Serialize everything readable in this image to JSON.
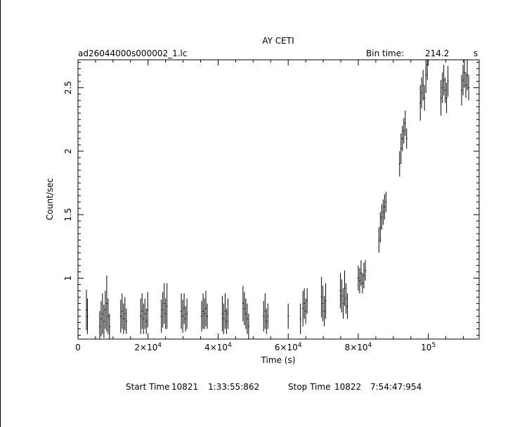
{
  "chart_data": {
    "type": "scatter",
    "title": "AY CETI",
    "file_label": "ad26044000s000002_1.lc",
    "bin_time_label": "Bin time:",
    "bin_time_value": "214.2",
    "bin_time_unit": "s",
    "xlabel": "Time (s)",
    "ylabel": "Count/sec",
    "xlim": [
      0,
      114500
    ],
    "ylim": [
      0.52,
      2.72
    ],
    "x_ticks": [
      {
        "value": 0,
        "label": "0",
        "exp": ""
      },
      {
        "value": 20000,
        "label": "2×10",
        "exp": "4"
      },
      {
        "value": 40000,
        "label": "4×10",
        "exp": "4"
      },
      {
        "value": 60000,
        "label": "6×10",
        "exp": "4"
      },
      {
        "value": 80000,
        "label": "8×10",
        "exp": "4"
      },
      {
        "value": 100000,
        "label": "10",
        "exp": "5"
      }
    ],
    "y_ticks": [
      {
        "value": 1,
        "label": "1"
      },
      {
        "value": 1.5,
        "label": "1.5"
      },
      {
        "value": 2,
        "label": "2"
      },
      {
        "value": 2.5,
        "label": "2.5"
      }
    ],
    "grid": false,
    "series": [
      {
        "points": [
          [
            2400,
            0.75,
            0.16
          ],
          [
            2700,
            0.7,
            0.14
          ],
          [
            6200,
            0.62,
            0.12
          ],
          [
            6600,
            0.68,
            0.14
          ],
          [
            7000,
            0.72,
            0.16
          ],
          [
            7400,
            0.66,
            0.13
          ],
          [
            7800,
            0.75,
            0.15
          ],
          [
            8200,
            0.8,
            0.22
          ],
          [
            8600,
            0.7,
            0.14
          ],
          [
            9000,
            0.62,
            0.1
          ],
          [
            12200,
            0.7,
            0.13
          ],
          [
            12600,
            0.74,
            0.14
          ],
          [
            13000,
            0.68,
            0.12
          ],
          [
            13400,
            0.72,
            0.13
          ],
          [
            13800,
            0.66,
            0.1
          ],
          [
            17900,
            0.7,
            0.14
          ],
          [
            18300,
            0.74,
            0.14
          ],
          [
            18700,
            0.68,
            0.12
          ],
          [
            19100,
            0.72,
            0.12
          ],
          [
            19500,
            0.66,
            0.1
          ],
          [
            19900,
            0.75,
            0.14
          ],
          [
            23800,
            0.7,
            0.13
          ],
          [
            24200,
            0.75,
            0.14
          ],
          [
            24600,
            0.8,
            0.16
          ],
          [
            25000,
            0.72,
            0.12
          ],
          [
            25400,
            0.78,
            0.18
          ],
          [
            29500,
            0.74,
            0.14
          ],
          [
            29900,
            0.7,
            0.13
          ],
          [
            30300,
            0.76,
            0.12
          ],
          [
            30700,
            0.68,
            0.1
          ],
          [
            31100,
            0.72,
            0.12
          ],
          [
            35300,
            0.7,
            0.12
          ],
          [
            35700,
            0.74,
            0.14
          ],
          [
            36100,
            0.72,
            0.12
          ],
          [
            36500,
            0.76,
            0.14
          ],
          [
            36900,
            0.7,
            0.1
          ],
          [
            41200,
            0.72,
            0.14
          ],
          [
            41600,
            0.68,
            0.12
          ],
          [
            42000,
            0.74,
            0.14
          ],
          [
            42400,
            0.66,
            0.1
          ],
          [
            42800,
            0.72,
            0.12
          ],
          [
            47100,
            0.8,
            0.14
          ],
          [
            47500,
            0.76,
            0.13
          ],
          [
            47900,
            0.72,
            0.12
          ],
          [
            48300,
            0.68,
            0.12
          ],
          [
            48700,
            0.62,
            0.1
          ],
          [
            53000,
            0.7,
            0.12
          ],
          [
            53400,
            0.74,
            0.14
          ],
          [
            53800,
            0.66,
            0.1
          ],
          [
            54200,
            0.7,
            0.1
          ],
          [
            60000,
            0.7,
            0.1
          ],
          [
            63500,
            0.68,
            0.12
          ],
          [
            64200,
            0.76,
            0.14
          ],
          [
            64600,
            0.8,
            0.12
          ],
          [
            65000,
            0.74,
            0.1
          ],
          [
            65400,
            0.82,
            0.1
          ],
          [
            69500,
            0.85,
            0.16
          ],
          [
            69900,
            0.8,
            0.14
          ],
          [
            70300,
            0.74,
            0.12
          ],
          [
            70700,
            0.82,
            0.14
          ],
          [
            74900,
            0.9,
            0.14
          ],
          [
            75300,
            0.86,
            0.13
          ],
          [
            75700,
            0.8,
            0.12
          ],
          [
            76100,
            0.92,
            0.14
          ],
          [
            76500,
            0.84,
            0.12
          ],
          [
            76900,
            0.78,
            0.1
          ],
          [
            80000,
            1.0,
            0.1
          ],
          [
            80400,
            0.98,
            0.1
          ],
          [
            80800,
            1.04,
            0.1
          ],
          [
            81200,
            0.96,
            0.08
          ],
          [
            81600,
            1.02,
            0.1
          ],
          [
            82000,
            1.06,
            0.08
          ],
          [
            85900,
            1.3,
            0.1
          ],
          [
            86300,
            1.4,
            0.12
          ],
          [
            86700,
            1.48,
            0.1
          ],
          [
            87100,
            1.52,
            0.1
          ],
          [
            87500,
            1.56,
            0.1
          ],
          [
            87900,
            1.6,
            0.08
          ],
          [
            91800,
            1.9,
            0.1
          ],
          [
            92200,
            2.02,
            0.12
          ],
          [
            92600,
            2.1,
            0.1
          ],
          [
            93000,
            2.16,
            0.1
          ],
          [
            93400,
            2.22,
            0.1
          ],
          [
            93800,
            2.1,
            0.08
          ],
          [
            97700,
            2.38,
            0.14
          ],
          [
            98100,
            2.46,
            0.12
          ],
          [
            98500,
            2.52,
            0.12
          ],
          [
            98900,
            2.42,
            0.1
          ],
          [
            99300,
            2.6,
            0.14
          ],
          [
            99700,
            2.68,
            0.12
          ],
          [
            103600,
            2.42,
            0.14
          ],
          [
            104000,
            2.5,
            0.12
          ],
          [
            104400,
            2.56,
            0.12
          ],
          [
            104800,
            2.48,
            0.1
          ],
          [
            105200,
            2.42,
            0.12
          ],
          [
            105600,
            2.55,
            0.12
          ],
          [
            109500,
            2.48,
            0.12
          ],
          [
            109900,
            2.56,
            0.12
          ],
          [
            110300,
            2.62,
            0.12
          ],
          [
            110700,
            2.52,
            0.1
          ],
          [
            111100,
            2.6,
            0.12
          ],
          [
            111500,
            2.5,
            0.1
          ]
        ]
      }
    ]
  },
  "footer": {
    "start_label": "Start Time",
    "start_day": "10821",
    "start_time": "1:33:55:862",
    "stop_label": "Stop Time",
    "stop_day": "10822",
    "stop_time": "7:54:47:954"
  }
}
